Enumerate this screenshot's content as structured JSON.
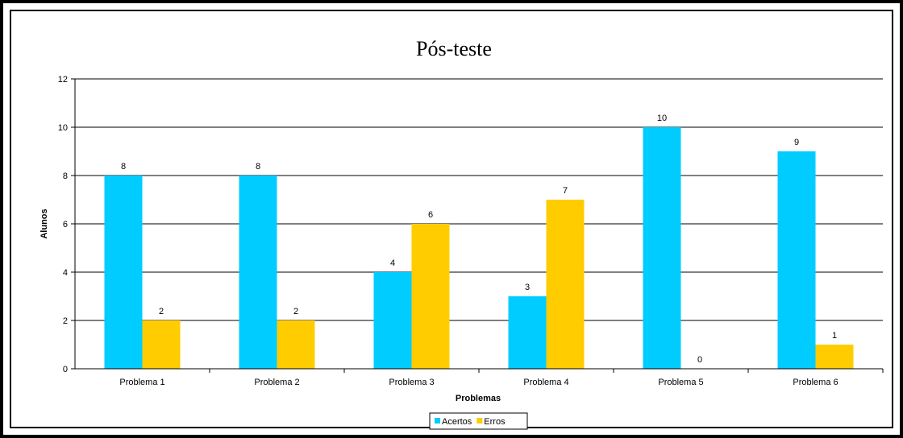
{
  "chart_data": {
    "type": "bar",
    "title": "Pós-teste",
    "xlabel": "Problemas",
    "ylabel": "Alunos",
    "categories": [
      "Problema 1",
      "Problema 2",
      "Problema 3",
      "Problema 4",
      "Problema 5",
      "Problema 6"
    ],
    "series": [
      {
        "name": "Acertos",
        "color": "#00CCFF",
        "values": [
          8,
          8,
          4,
          3,
          10,
          9
        ]
      },
      {
        "name": "Erros",
        "color": "#FFCC00",
        "values": [
          2,
          2,
          6,
          7,
          0,
          1
        ]
      }
    ],
    "ylim": [
      0,
      12
    ],
    "yticks": [
      0,
      2,
      4,
      6,
      8,
      10,
      12
    ],
    "grid": true,
    "legend": "bottom"
  }
}
